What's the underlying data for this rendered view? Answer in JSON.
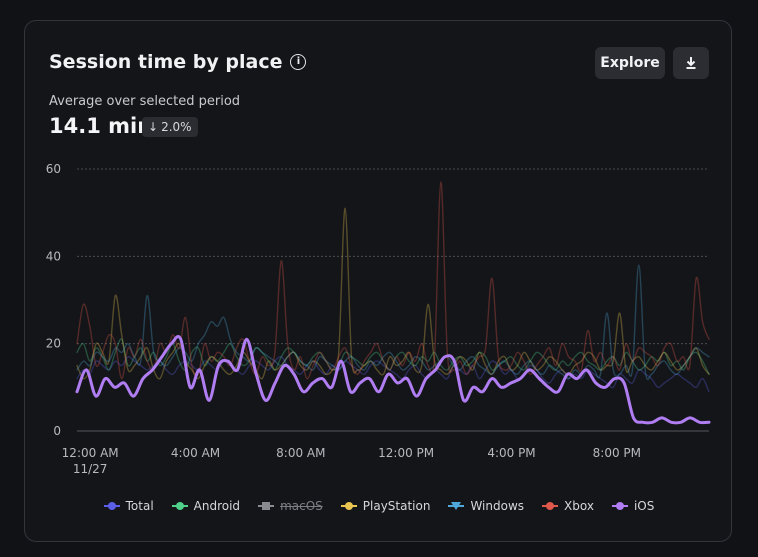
{
  "card": {
    "title": "Session time by place",
    "explore_label": "Explore",
    "subtitle": "Average over selected period",
    "value": "14.1 min",
    "change": "2.0%",
    "icons": {
      "info": "info-icon",
      "download": "download-icon",
      "change": "arrow-down-icon"
    }
  },
  "chart_data": {
    "type": "line",
    "ylim": [
      0,
      60
    ],
    "yticks": [
      0,
      20,
      40,
      60
    ],
    "x_labels": [
      {
        "t": 0,
        "lines": [
          "12:00 AM",
          "11/27"
        ]
      },
      {
        "t": 4,
        "lines": [
          "4:00 AM"
        ]
      },
      {
        "t": 8,
        "lines": [
          "8:00 AM"
        ]
      },
      {
        "t": 12,
        "lines": [
          "12:00 PM"
        ]
      },
      {
        "t": 16,
        "lines": [
          "4:00 PM"
        ]
      },
      {
        "t": 20,
        "lines": [
          "8:00 PM"
        ]
      }
    ],
    "x_range_hours": [
      -0.5,
      23.5
    ],
    "grid": true,
    "legend_position": "bottom",
    "series": [
      {
        "name": "Total",
        "color": "#5b5fe8",
        "marker": "circle",
        "visible": true,
        "values": [
          12,
          14,
          13,
          16,
          15,
          14,
          16,
          15,
          17,
          16,
          15,
          14,
          15,
          16,
          14,
          13,
          15,
          16,
          15,
          14,
          16,
          15,
          14,
          16,
          15,
          14,
          13,
          15,
          16,
          15,
          14,
          16,
          17,
          15,
          14,
          13,
          15,
          16,
          14,
          13,
          15,
          14,
          16,
          15,
          14,
          13,
          15,
          16,
          15,
          14,
          13,
          12,
          14,
          15,
          13,
          12,
          14,
          13,
          12,
          15,
          14,
          13,
          15,
          12,
          14,
          16,
          15,
          13,
          14,
          12,
          13,
          15,
          14,
          12,
          11,
          13,
          14,
          12,
          13,
          12,
          14,
          13,
          12,
          11,
          10,
          13,
          12,
          11,
          14,
          13,
          12,
          10,
          11,
          12,
          13,
          12,
          11,
          10,
          12,
          9
        ]
      },
      {
        "name": "Android",
        "color": "#4fd18b",
        "marker": "circle",
        "visible": true,
        "values": [
          18,
          20,
          16,
          19,
          17,
          14,
          18,
          21,
          15,
          17,
          19,
          16,
          18,
          15,
          17,
          20,
          16,
          14,
          18,
          19,
          15,
          17,
          16,
          18,
          20,
          17,
          15,
          16,
          19,
          18,
          16,
          14,
          17,
          19,
          18,
          16,
          15,
          17,
          18,
          16,
          14,
          15,
          18,
          17,
          16,
          15,
          17,
          18,
          16,
          14,
          17,
          18,
          16,
          15,
          17,
          16,
          18,
          15,
          14,
          16,
          17,
          15,
          16,
          18,
          17,
          14,
          15,
          16,
          17,
          15,
          14,
          16,
          18,
          17,
          15,
          14,
          16,
          15,
          17,
          18,
          16,
          15,
          14,
          16,
          17,
          15,
          18,
          16,
          14,
          15,
          17,
          16,
          18,
          15,
          16,
          14,
          17,
          18,
          16,
          13
        ]
      },
      {
        "name": "macOS",
        "color": "#8a8b90",
        "marker": "square",
        "visible": false,
        "values": []
      },
      {
        "name": "PlayStation",
        "color": "#e9c552",
        "marker": "circle",
        "visible": true,
        "values": [
          15,
          12,
          14,
          20,
          18,
          16,
          31,
          22,
          14,
          15,
          17,
          19,
          14,
          12,
          16,
          18,
          20,
          16,
          14,
          12,
          15,
          17,
          16,
          14,
          13,
          15,
          18,
          16,
          14,
          12,
          16,
          14,
          15,
          17,
          18,
          15,
          14,
          16,
          15,
          13,
          14,
          18,
          51,
          17,
          14,
          15,
          16,
          14,
          13,
          17,
          15,
          16,
          18,
          14,
          15,
          29,
          16,
          14,
          13,
          15,
          17,
          16,
          14,
          18,
          15,
          13,
          16,
          17,
          14,
          15,
          18,
          16,
          14,
          15,
          17,
          16,
          14,
          13,
          15,
          16,
          18,
          17,
          14,
          15,
          16,
          27,
          14,
          16,
          17,
          15,
          14,
          16,
          18,
          16,
          14,
          15,
          17,
          19,
          15,
          13
        ]
      },
      {
        "name": "Windows",
        "color": "#4fa8d8",
        "marker": "triangle",
        "visible": true,
        "values": [
          14,
          16,
          15,
          18,
          17,
          16,
          19,
          18,
          20,
          17,
          16,
          31,
          18,
          16,
          15,
          17,
          19,
          18,
          16,
          20,
          22,
          25,
          24,
          26,
          21,
          18,
          17,
          16,
          19,
          18,
          17,
          16,
          15,
          17,
          18,
          16,
          15,
          14,
          17,
          16,
          15,
          14,
          16,
          17,
          15,
          14,
          16,
          15,
          17,
          18,
          16,
          14,
          15,
          17,
          16,
          14,
          15,
          16,
          17,
          15,
          14,
          16,
          17,
          15,
          14,
          13,
          15,
          16,
          14,
          13,
          15,
          16,
          14,
          13,
          15,
          14,
          13,
          12,
          14,
          13,
          15,
          14,
          13,
          27,
          14,
          13,
          15,
          14,
          38,
          14,
          13,
          15,
          16,
          14,
          13,
          15,
          17,
          19,
          18,
          17
        ]
      },
      {
        "name": "Xbox",
        "color": "#e0584a",
        "marker": "circle",
        "visible": true,
        "values": [
          20,
          29,
          24,
          15,
          18,
          22,
          20,
          12,
          19,
          17,
          21,
          16,
          14,
          20,
          18,
          22,
          19,
          26,
          15,
          13,
          20,
          16,
          18,
          17,
          15,
          19,
          21,
          16,
          13,
          17,
          15,
          18,
          39,
          20,
          14,
          17,
          12,
          15,
          18,
          16,
          14,
          17,
          19,
          15,
          13,
          16,
          18,
          20,
          16,
          14,
          17,
          15,
          18,
          16,
          20,
          15,
          17,
          57,
          18,
          14,
          16,
          13,
          15,
          17,
          19,
          35,
          17,
          14,
          15,
          18,
          16,
          13,
          15,
          17,
          19,
          15,
          20,
          17,
          16,
          14,
          23,
          16,
          18,
          15,
          17,
          14,
          20,
          16,
          19,
          18,
          17,
          15,
          19,
          20,
          16,
          17,
          15,
          35,
          25,
          21
        ]
      },
      {
        "name": "iOS",
        "color": "#b07ef2",
        "marker": "circle",
        "visible": true,
        "values": [
          9,
          14,
          8,
          12,
          10,
          11,
          8,
          12,
          14,
          17,
          20,
          21,
          10,
          14,
          7,
          15,
          16,
          14,
          21,
          13,
          7,
          11,
          15,
          13,
          9,
          11,
          12,
          10,
          16,
          9,
          11,
          12,
          9,
          13,
          11,
          12,
          8,
          12,
          14,
          17,
          16,
          7,
          10,
          9,
          12,
          10,
          11,
          12,
          14,
          12,
          10,
          9,
          13,
          12,
          14,
          11,
          10,
          12,
          11,
          3,
          2,
          2,
          3,
          2,
          2,
          3,
          2,
          2
        ]
      }
    ]
  },
  "legend": [
    {
      "label": "Total",
      "color": "#5b5fe8",
      "marker": "circle",
      "visible": true
    },
    {
      "label": "Android",
      "color": "#4fd18b",
      "marker": "circle",
      "visible": true
    },
    {
      "label": "macOS",
      "color": "#8a8b90",
      "marker": "square",
      "visible": false
    },
    {
      "label": "PlayStation",
      "color": "#e9c552",
      "marker": "circle",
      "visible": true
    },
    {
      "label": "Windows",
      "color": "#4fa8d8",
      "marker": "triangle",
      "visible": true
    },
    {
      "label": "Xbox",
      "color": "#e0584a",
      "marker": "circle",
      "visible": true
    },
    {
      "label": "iOS",
      "color": "#b07ef2",
      "marker": "circle",
      "visible": true
    }
  ]
}
